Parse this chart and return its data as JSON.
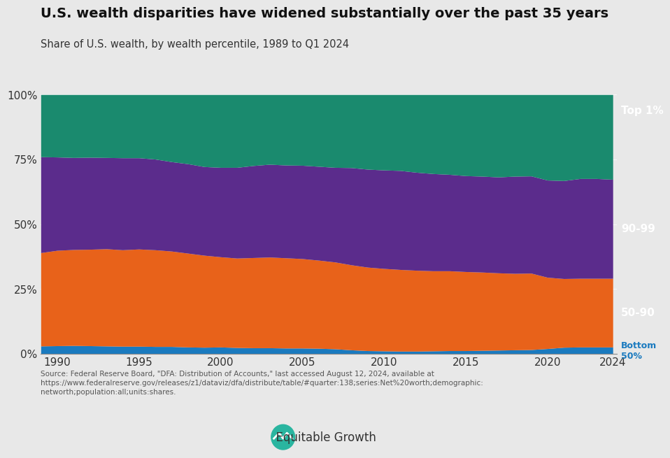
{
  "title": "U.S. wealth disparities have widened substantially over the past 35 years",
  "subtitle": "Share of U.S. wealth, by wealth percentile, 1989 to Q1 2024",
  "source_text": "Source: Federal Reserve Board, \"DFA: Distribution of Accounts,\" last accessed August 12, 2024, available at\nhttps://www.federalreserve.gov/releases/z1/dataviz/dfa/distribute/table/#quarter:138;series:Net%20worth;demographic:\nnetworth;population:all;units:shares.",
  "background_color": "#e8e8e8",
  "colors": {
    "bottom50": "#1a7abf",
    "pct50_90": "#e8621a",
    "pct90_99": "#5b2c8c",
    "top1": "#1a8a6e"
  },
  "labels": {
    "bottom50": "Bottom\n50%",
    "pct50_90": "50-90",
    "pct90_99": "90-99",
    "top1": "Top 1%"
  },
  "years": [
    1989,
    1990,
    1991,
    1992,
    1993,
    1994,
    1995,
    1996,
    1997,
    1998,
    1999,
    2000,
    2001,
    2002,
    2003,
    2004,
    2005,
    2006,
    2007,
    2008,
    2009,
    2010,
    2011,
    2012,
    2013,
    2014,
    2015,
    2016,
    2017,
    2018,
    2019,
    2020,
    2021,
    2022,
    2023,
    2024
  ],
  "bottom50": [
    3.0,
    3.1,
    3.2,
    3.1,
    3.0,
    2.9,
    2.9,
    2.8,
    2.8,
    2.6,
    2.5,
    2.6,
    2.4,
    2.3,
    2.3,
    2.2,
    2.2,
    2.1,
    1.9,
    1.5,
    1.2,
    1.1,
    1.0,
    1.0,
    1.1,
    1.2,
    1.2,
    1.3,
    1.4,
    1.5,
    1.6,
    2.0,
    2.5,
    2.6,
    2.6,
    2.6
  ],
  "pct50_90": [
    36.0,
    36.8,
    37.0,
    37.2,
    37.5,
    37.2,
    37.5,
    37.3,
    36.8,
    36.2,
    35.5,
    34.8,
    34.5,
    34.8,
    35.0,
    34.8,
    34.5,
    34.0,
    33.5,
    32.8,
    32.2,
    31.8,
    31.5,
    31.2,
    30.9,
    30.8,
    30.5,
    30.2,
    29.8,
    29.5,
    29.5,
    27.5,
    26.5,
    26.5,
    26.5,
    26.5
  ],
  "pct90_99": [
    37.0,
    36.0,
    35.5,
    35.5,
    35.2,
    35.5,
    35.2,
    35.0,
    34.5,
    34.5,
    34.2,
    34.5,
    35.0,
    35.5,
    35.8,
    35.8,
    36.0,
    36.2,
    36.5,
    37.5,
    37.8,
    38.0,
    38.2,
    37.8,
    37.5,
    37.2,
    37.0,
    37.0,
    37.0,
    37.5,
    37.5,
    37.5,
    37.8,
    38.5,
    38.5,
    38.2
  ],
  "top1": [
    24.0,
    24.1,
    24.3,
    24.2,
    24.3,
    24.4,
    24.4,
    24.9,
    25.9,
    26.7,
    27.8,
    28.1,
    28.1,
    27.4,
    26.9,
    27.2,
    27.3,
    27.7,
    28.1,
    28.2,
    28.8,
    29.1,
    29.3,
    30.0,
    30.5,
    30.8,
    31.3,
    31.5,
    31.8,
    31.5,
    31.4,
    33.0,
    33.2,
    32.4,
    32.4,
    32.7
  ],
  "xlim": [
    1989,
    2024.25
  ],
  "ylim": [
    0,
    100
  ],
  "yticks": [
    0,
    25,
    50,
    75,
    100
  ],
  "xticks": [
    1990,
    1995,
    2000,
    2005,
    2010,
    2015,
    2020,
    2024
  ]
}
